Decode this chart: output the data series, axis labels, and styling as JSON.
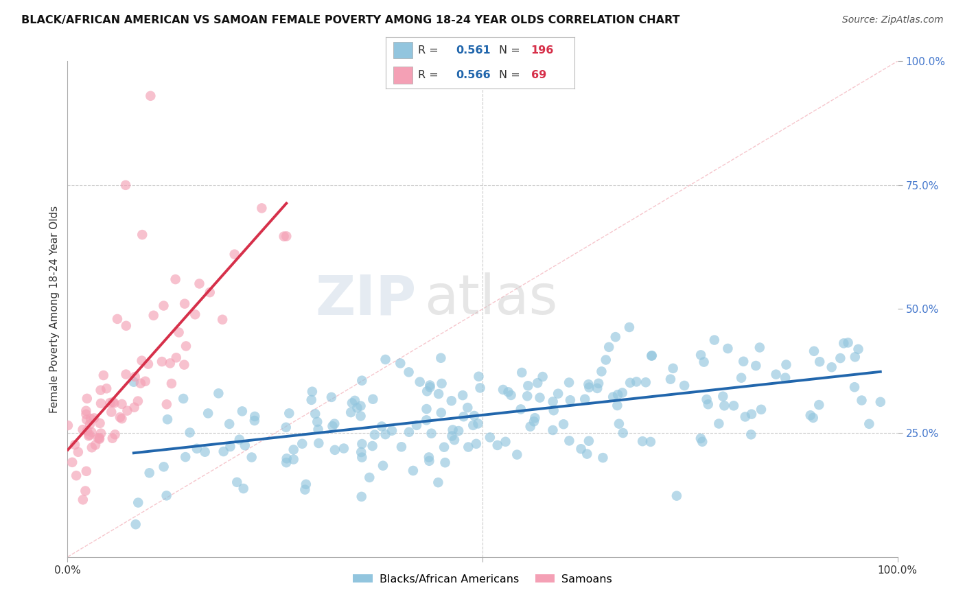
{
  "title": "BLACK/AFRICAN AMERICAN VS SAMOAN FEMALE POVERTY AMONG 18-24 YEAR OLDS CORRELATION CHART",
  "source": "Source: ZipAtlas.com",
  "ylabel": "Female Poverty Among 18-24 Year Olds",
  "watermark_zip": "ZIP",
  "watermark_atlas": "atlas",
  "blue_R": "0.561",
  "blue_N": "196",
  "pink_R": "0.566",
  "pink_N": "69",
  "blue_label": "Blacks/African Americans",
  "pink_label": "Samoans",
  "blue_color": "#92c5de",
  "pink_color": "#f4a0b5",
  "blue_line_color": "#2166ac",
  "pink_line_color": "#d6304a",
  "ref_line_color": "#f4b8c0",
  "title_fontsize": 11.5,
  "source_fontsize": 10,
  "legend_R_color": "#2166ac",
  "legend_N_color": "#d6304a",
  "tick_color": "#4477cc",
  "background_color": "#ffffff",
  "grid_color": "#cccccc"
}
